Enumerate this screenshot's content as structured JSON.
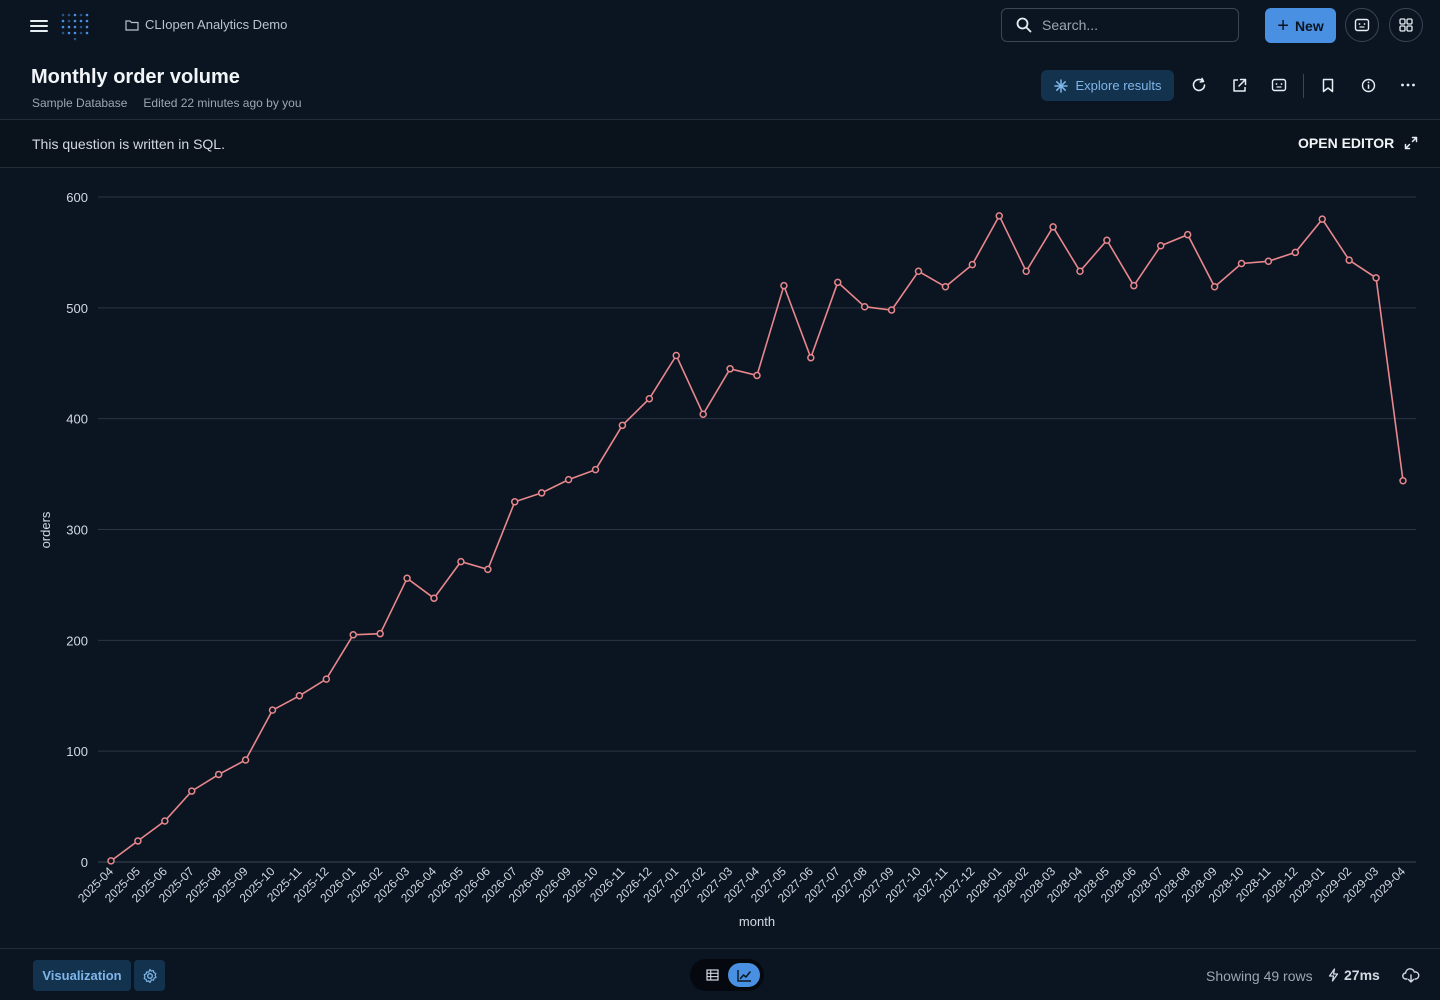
{
  "header": {
    "collection": "CLIopen Analytics Demo",
    "search_placeholder": "Search...",
    "new_label": "New"
  },
  "question": {
    "title": "Monthly order volume",
    "database": "Sample Database",
    "edited": "Edited 22 minutes ago by you",
    "explore_label": "Explore results"
  },
  "sql_bar": {
    "message": "This question is written in SQL.",
    "open_editor": "OPEN EDITOR"
  },
  "footer": {
    "visualization_label": "Visualization",
    "rows_label": "Showing 49 rows",
    "timing": "27ms"
  },
  "colors": {
    "background": "#0b1522",
    "accent": "#4a90e2",
    "line": "#e8878c"
  },
  "chart_data": {
    "type": "line",
    "xlabel": "month",
    "ylabel": "orders",
    "ylim": [
      0,
      600
    ],
    "yticks": [
      0,
      100,
      200,
      300,
      400,
      500,
      600
    ],
    "grid": true,
    "series": [
      {
        "x": [
          "2025-04",
          "2025-05",
          "2025-06",
          "2025-07",
          "2025-08",
          "2025-09",
          "2025-10",
          "2025-11",
          "2025-12",
          "2026-01",
          "2026-02",
          "2026-03",
          "2026-04",
          "2026-05",
          "2026-06",
          "2026-07",
          "2026-08",
          "2026-09",
          "2026-10",
          "2026-11",
          "2026-12",
          "2027-01",
          "2027-02",
          "2027-03",
          "2027-04",
          "2027-05",
          "2027-06",
          "2027-07",
          "2027-08",
          "2027-09",
          "2027-10",
          "2027-11",
          "2027-12",
          "2028-01",
          "2028-02",
          "2028-03",
          "2028-04",
          "2028-05",
          "2028-06",
          "2028-07",
          "2028-08",
          "2028-09",
          "2028-10",
          "2028-11",
          "2028-12",
          "2029-01",
          "2029-02",
          "2029-03",
          "2029-04"
        ],
        "values": [
          1,
          19,
          37,
          64,
          79,
          92,
          137,
          150,
          165,
          205,
          206,
          256,
          238,
          271,
          264,
          325,
          333,
          345,
          354,
          394,
          418,
          457,
          404,
          445,
          439,
          520,
          455,
          523,
          501,
          498,
          533,
          519,
          539,
          583,
          533,
          573,
          533,
          561,
          520,
          556,
          566,
          519,
          540,
          542,
          550,
          580,
          543,
          527,
          344
        ]
      }
    ]
  }
}
